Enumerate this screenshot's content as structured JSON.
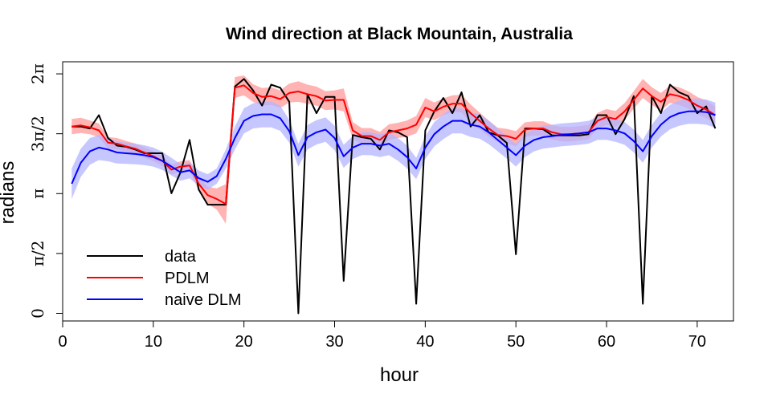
{
  "chart_data": {
    "type": "line",
    "title": "Wind direction at Black Mountain, Australia",
    "xlabel": "hour",
    "ylabel": "radians",
    "xlim": [
      0,
      74
    ],
    "ylim": [
      -0.2,
      6.6
    ],
    "x_ticks": [
      0,
      10,
      20,
      30,
      40,
      50,
      60,
      70
    ],
    "y_ticks": [
      {
        "value": 0,
        "label": "0"
      },
      {
        "value": 1.5708,
        "label": "π/2"
      },
      {
        "value": 3.1416,
        "label": "π"
      },
      {
        "value": 4.7124,
        "label": "3π/2"
      },
      {
        "value": 6.2832,
        "label": "2π"
      }
    ],
    "grid": false,
    "legend": {
      "position": "bottom-left",
      "entries": [
        {
          "name": "data",
          "color": "#000000"
        },
        {
          "name": "PDLM",
          "color": "#ff0000"
        },
        {
          "name": "naive DLM",
          "color": "#0000ff"
        }
      ]
    },
    "x": [
      1,
      2,
      3,
      4,
      5,
      6,
      7,
      8,
      9,
      10,
      11,
      12,
      13,
      14,
      15,
      16,
      17,
      18,
      19,
      20,
      21,
      22,
      23,
      24,
      25,
      26,
      27,
      28,
      29,
      30,
      31,
      32,
      33,
      34,
      35,
      36,
      37,
      38,
      39,
      40,
      41,
      42,
      43,
      44,
      45,
      46,
      47,
      48,
      49,
      50,
      51,
      52,
      53,
      54,
      55,
      56,
      57,
      58,
      59,
      60,
      61,
      62,
      63,
      64,
      65,
      66,
      67,
      68,
      69,
      70,
      71,
      72
    ],
    "series": [
      {
        "name": "data",
        "color": "#000000",
        "values": [
          4.9,
          4.9,
          4.85,
          5.2,
          4.6,
          4.4,
          4.37,
          4.3,
          4.2,
          4.2,
          4.2,
          3.15,
          3.7,
          4.55,
          3.25,
          2.85,
          2.85,
          2.85,
          5.95,
          6.15,
          5.85,
          5.45,
          6.0,
          5.92,
          5.55,
          0.0,
          5.75,
          5.25,
          5.68,
          5.68,
          0.85,
          4.68,
          4.62,
          4.58,
          4.3,
          4.8,
          4.75,
          4.62,
          0.25,
          4.8,
          5.3,
          5.65,
          5.25,
          5.8,
          4.9,
          5.2,
          4.75,
          4.67,
          4.47,
          1.55,
          4.85,
          4.85,
          4.83,
          4.67,
          4.67,
          4.67,
          4.67,
          4.7,
          5.2,
          5.2,
          4.7,
          5.1,
          5.7,
          0.25,
          5.7,
          5.25,
          6.0,
          5.8,
          5.7,
          5.25,
          5.43,
          4.85
        ]
      },
      {
        "name": "PDLM",
        "color": "#ff0000",
        "values": [
          4.9,
          4.93,
          4.88,
          4.8,
          4.48,
          4.45,
          4.38,
          4.32,
          4.22,
          4.12,
          4.0,
          3.77,
          3.85,
          3.88,
          3.4,
          3.1,
          3.0,
          2.87,
          5.92,
          5.98,
          5.78,
          5.68,
          5.7,
          5.62,
          5.78,
          5.82,
          5.75,
          5.7,
          5.58,
          5.6,
          5.6,
          4.8,
          4.65,
          4.65,
          4.55,
          4.75,
          4.8,
          4.85,
          4.95,
          5.4,
          5.3,
          5.42,
          5.5,
          5.5,
          5.25,
          5.05,
          4.85,
          4.68,
          4.65,
          4.58,
          4.82,
          4.85,
          4.85,
          4.75,
          4.7,
          4.7,
          4.72,
          4.75,
          5.05,
          5.15,
          5.1,
          5.3,
          5.6,
          5.9,
          5.7,
          5.55,
          5.75,
          5.7,
          5.6,
          5.45,
          5.35,
          5.2
        ]
      },
      {
        "name": "naive DLM",
        "color": "#0000ff",
        "values": [
          3.4,
          3.95,
          4.25,
          4.35,
          4.3,
          4.22,
          4.2,
          4.18,
          4.15,
          4.1,
          4.0,
          3.85,
          3.7,
          3.75,
          3.55,
          3.45,
          3.6,
          4.05,
          4.6,
          5.05,
          5.18,
          5.22,
          5.22,
          5.12,
          4.78,
          4.15,
          4.62,
          4.75,
          4.82,
          4.6,
          4.12,
          4.35,
          4.45,
          4.45,
          4.4,
          4.45,
          4.3,
          4.1,
          3.8,
          4.35,
          4.7,
          4.9,
          5.05,
          5.05,
          4.95,
          4.9,
          4.75,
          4.55,
          4.35,
          4.15,
          4.4,
          4.55,
          4.62,
          4.65,
          4.68,
          4.7,
          4.72,
          4.75,
          4.85,
          4.85,
          4.8,
          4.72,
          4.52,
          4.25,
          4.65,
          4.95,
          5.15,
          5.25,
          5.3,
          5.3,
          5.28,
          5.2
        ]
      }
    ],
    "bands": [
      {
        "name": "PDLM interval",
        "color": "#ff9a9a",
        "lower": [
          4.7,
          4.73,
          4.7,
          4.62,
          4.33,
          4.3,
          4.24,
          4.18,
          4.08,
          3.99,
          3.87,
          3.64,
          3.71,
          3.74,
          3.22,
          2.88,
          2.72,
          2.35,
          5.65,
          5.72,
          5.55,
          5.45,
          5.47,
          5.39,
          5.53,
          5.55,
          5.5,
          5.45,
          5.33,
          5.35,
          5.3,
          4.58,
          4.44,
          4.44,
          4.34,
          4.54,
          4.6,
          4.64,
          4.72,
          5.15,
          5.07,
          5.2,
          5.28,
          5.27,
          5.02,
          4.83,
          4.64,
          4.49,
          4.46,
          4.38,
          4.63,
          4.66,
          4.66,
          4.56,
          4.51,
          4.51,
          4.53,
          4.56,
          4.84,
          4.94,
          4.89,
          5.08,
          5.37,
          5.65,
          5.47,
          5.32,
          5.52,
          5.47,
          5.37,
          5.22,
          5.12,
          4.97
        ],
        "upper": [
          5.1,
          5.13,
          5.06,
          4.98,
          4.63,
          4.6,
          4.52,
          4.46,
          4.36,
          4.25,
          4.13,
          3.9,
          3.99,
          4.02,
          3.58,
          3.32,
          3.28,
          3.39,
          6.2,
          6.24,
          6.01,
          5.91,
          5.93,
          5.85,
          6.03,
          6.09,
          6.0,
          5.95,
          5.83,
          5.85,
          5.9,
          5.02,
          4.86,
          4.86,
          4.76,
          4.96,
          5.0,
          5.06,
          5.18,
          5.65,
          5.53,
          5.64,
          5.72,
          5.73,
          5.48,
          5.27,
          5.06,
          4.87,
          4.84,
          4.78,
          5.01,
          5.04,
          5.04,
          4.94,
          4.89,
          4.89,
          4.91,
          4.94,
          5.26,
          5.36,
          5.31,
          5.52,
          5.83,
          6.15,
          5.93,
          5.78,
          5.98,
          5.93,
          5.83,
          5.68,
          5.58,
          5.43
        ]
      },
      {
        "name": "naive DLM interval",
        "color": "#b4b4ff",
        "lower": [
          3.0,
          3.58,
          3.9,
          4.02,
          3.99,
          3.93,
          3.92,
          3.91,
          3.89,
          3.85,
          3.76,
          3.62,
          3.48,
          3.54,
          3.35,
          3.25,
          3.4,
          3.8,
          4.3,
          4.72,
          4.85,
          4.88,
          4.88,
          4.79,
          4.48,
          3.85,
          4.3,
          4.43,
          4.5,
          4.28,
          3.82,
          4.05,
          4.15,
          4.15,
          4.1,
          4.15,
          4.0,
          3.8,
          3.52,
          4.05,
          4.38,
          4.57,
          4.72,
          4.72,
          4.63,
          4.58,
          4.44,
          4.25,
          4.06,
          3.85,
          4.1,
          4.25,
          4.32,
          4.35,
          4.38,
          4.4,
          4.42,
          4.45,
          4.55,
          4.55,
          4.5,
          4.42,
          4.22,
          3.95,
          4.35,
          4.64,
          4.83,
          4.92,
          4.97,
          4.97,
          4.95,
          4.87
        ],
        "upper": [
          3.8,
          4.32,
          4.6,
          4.68,
          4.61,
          4.51,
          4.48,
          4.45,
          4.41,
          4.35,
          4.24,
          4.08,
          3.92,
          3.96,
          3.75,
          3.65,
          3.8,
          4.3,
          4.9,
          5.38,
          5.51,
          5.56,
          5.56,
          5.45,
          5.08,
          4.45,
          4.94,
          5.07,
          5.14,
          4.92,
          4.42,
          4.65,
          4.75,
          4.75,
          4.7,
          4.75,
          4.6,
          4.4,
          4.08,
          4.65,
          5.02,
          5.23,
          5.38,
          5.38,
          5.27,
          5.22,
          5.06,
          4.85,
          4.64,
          4.45,
          4.7,
          4.85,
          4.92,
          4.95,
          4.98,
          5.0,
          5.02,
          5.05,
          5.15,
          5.15,
          5.1,
          5.02,
          4.82,
          4.55,
          4.95,
          5.26,
          5.47,
          5.58,
          5.63,
          5.63,
          5.61,
          5.53
        ]
      }
    ]
  }
}
